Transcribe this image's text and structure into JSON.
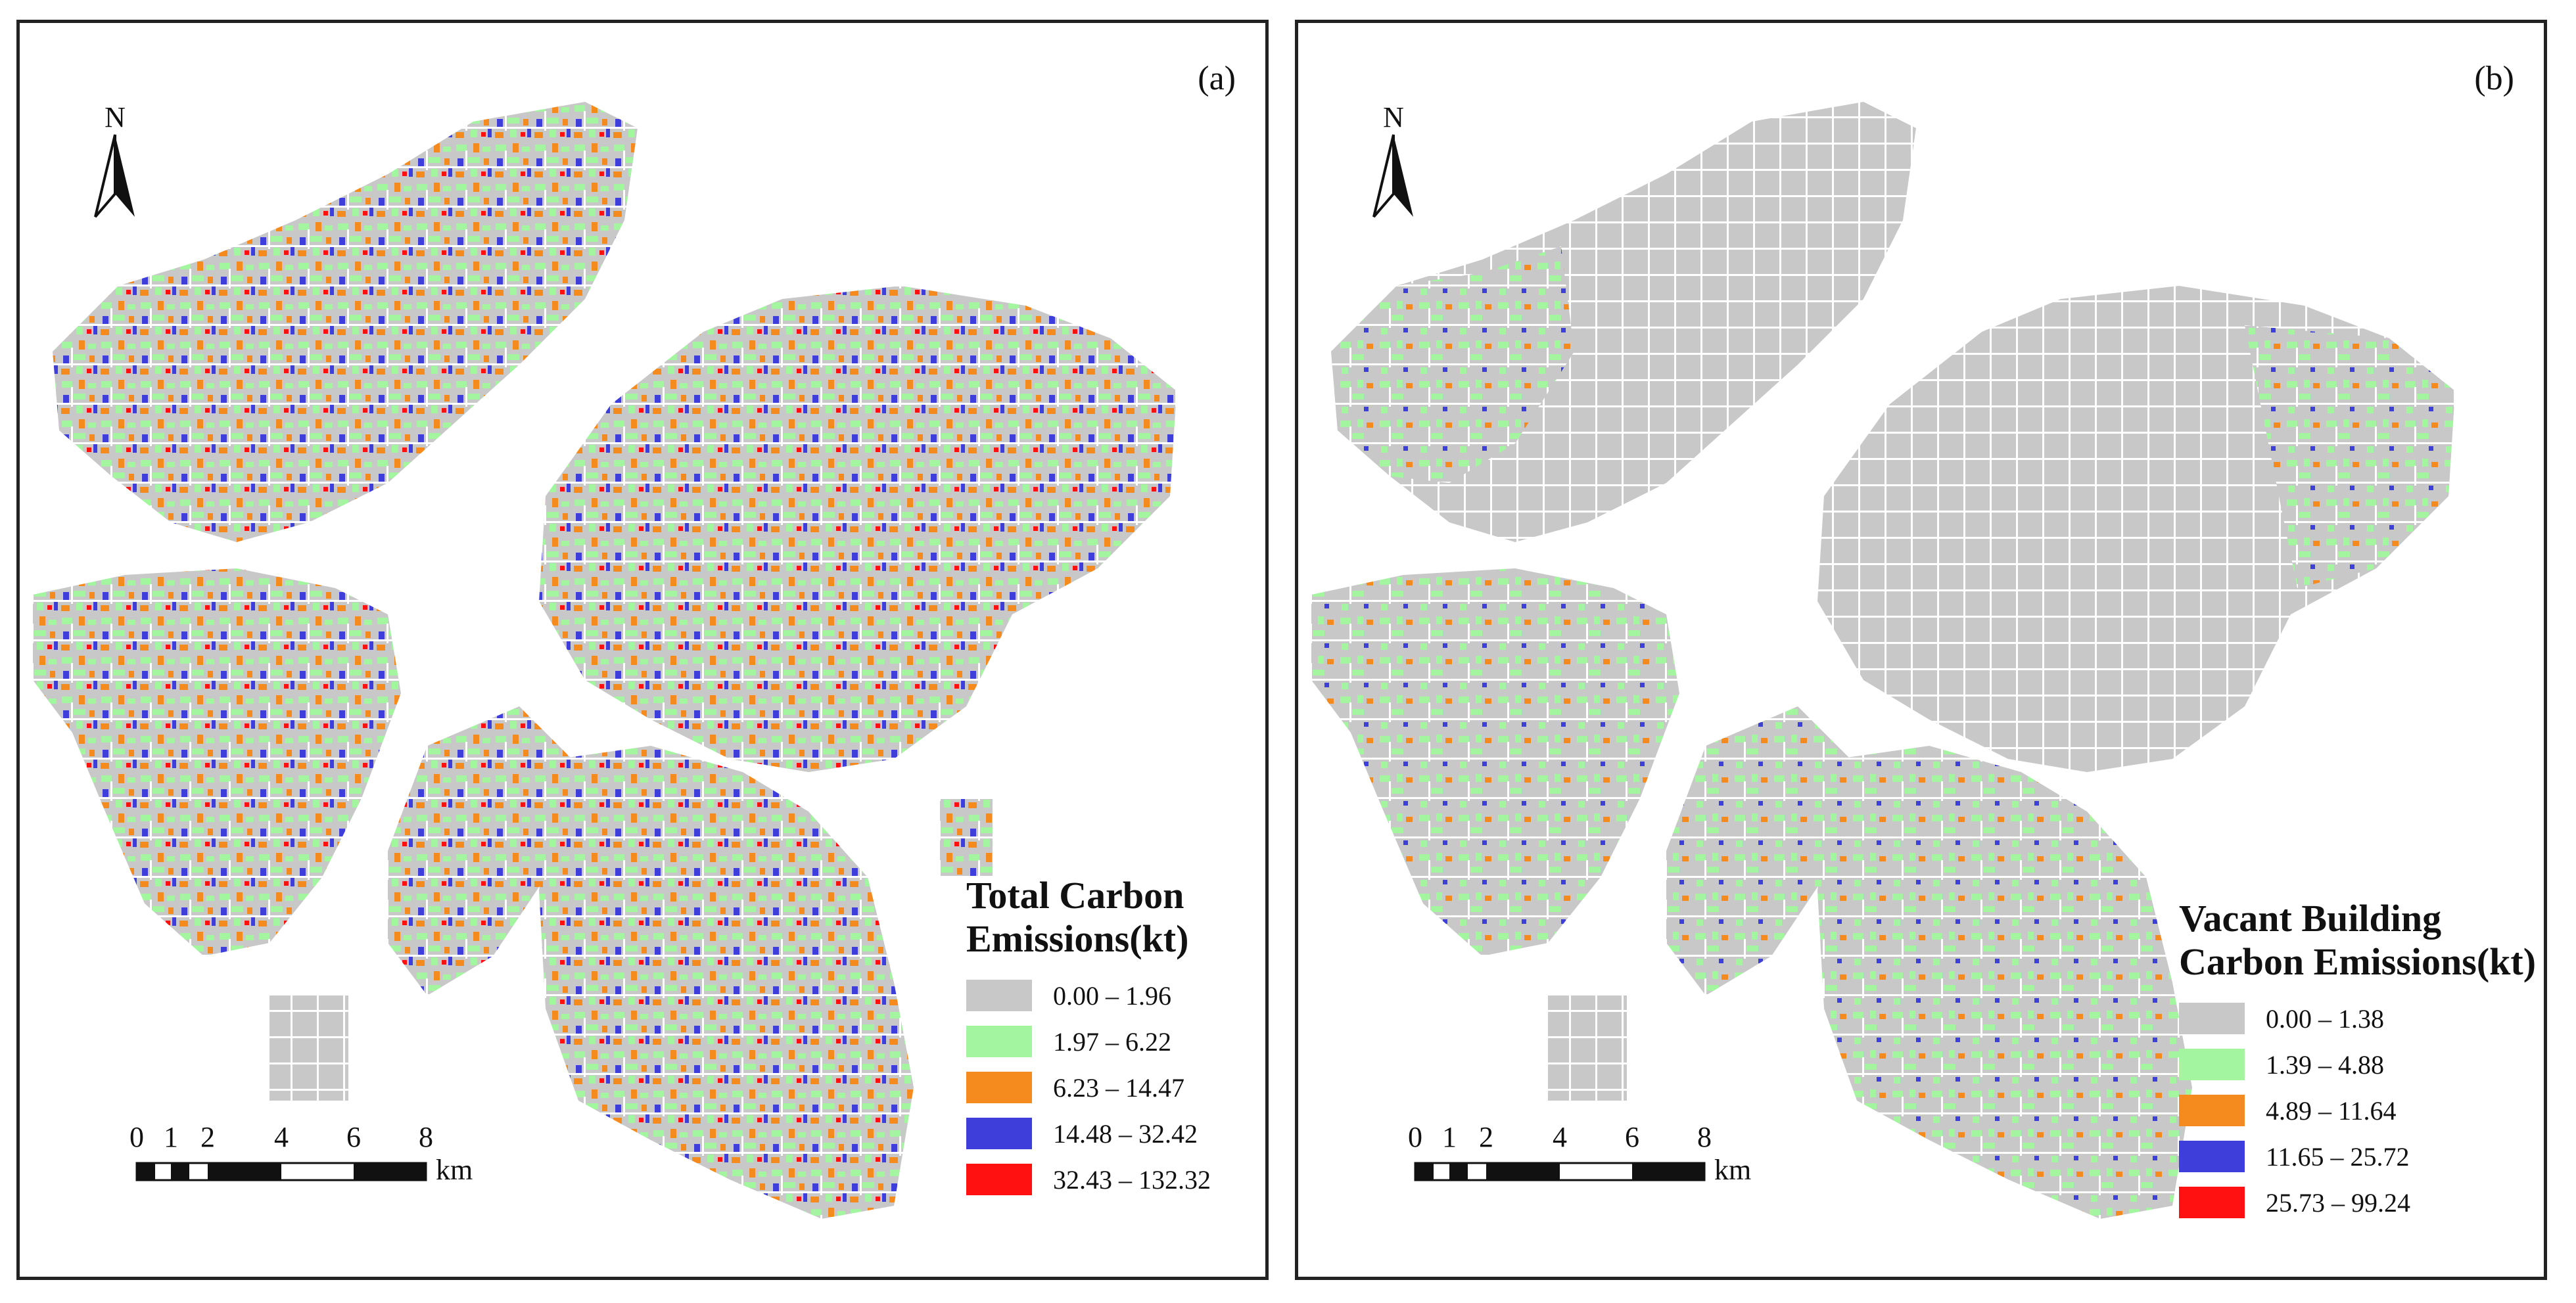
{
  "panels": [
    {
      "label": "(a)",
      "north": "N",
      "legend": {
        "title_line1": "Total Carbon",
        "title_line2": "Emissions(kt)",
        "classes": [
          {
            "label": "0.00 – 1.96",
            "color": "#c8c8c8"
          },
          {
            "label": "1.97 – 6.22",
            "color": "#a3f5a0"
          },
          {
            "label": "6.23 – 14.47",
            "color": "#f58a1f"
          },
          {
            "label": "14.48 – 32.42",
            "color": "#3e3edb"
          },
          {
            "label": "32.43 – 132.32",
            "color": "#ff1111"
          }
        ]
      },
      "scale": {
        "ticks": [
          "0",
          "1",
          "2",
          "4",
          "6",
          "8"
        ],
        "unit": "km"
      }
    },
    {
      "label": "(b)",
      "north": "N",
      "legend": {
        "title_line1": "Vacant Building",
        "title_line2": "Carbon Emissions(kt)",
        "classes": [
          {
            "label": "0.00 – 1.38",
            "color": "#c8c8c8"
          },
          {
            "label": "1.39 – 4.88",
            "color": "#a3f5a0"
          },
          {
            "label": "4.89 – 11.64",
            "color": "#f58a1f"
          },
          {
            "label": "11.65 – 25.72",
            "color": "#3e3edb"
          },
          {
            "label": "25.73 – 99.24",
            "color": "#ff1111"
          }
        ]
      },
      "scale": {
        "ticks": [
          "0",
          "1",
          "2",
          "4",
          "6",
          "8"
        ],
        "unit": "km"
      }
    }
  ]
}
